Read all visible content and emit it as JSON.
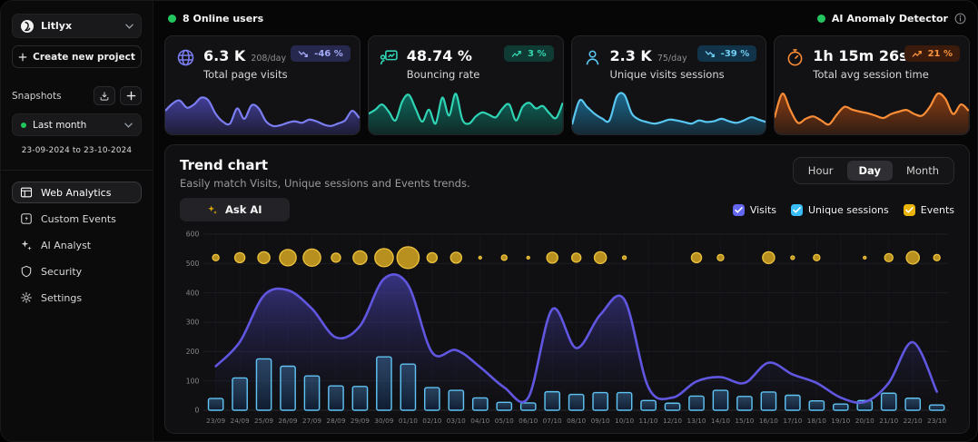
{
  "topbar": {
    "online_users": "8 Online users",
    "anomaly_label": "AI Anomaly Detector"
  },
  "sidebar": {
    "project_name": "Litlyx",
    "create_project": "Create new project",
    "snapshots_label": "Snapshots",
    "snapshot_selected": "Last month",
    "date_range": "23-09-2024 to 23-10-2024",
    "active_nav": "Web Analytics",
    "nav": [
      {
        "label": "Web Analytics"
      },
      {
        "label": "Custom Events"
      },
      {
        "label": "AI Analyst"
      },
      {
        "label": "Security"
      },
      {
        "label": "Settings"
      }
    ]
  },
  "cards": [
    {
      "value": "6.3 K",
      "per_day": "208/day",
      "label": "Total page visits",
      "badge": "-46 %",
      "trend": "down",
      "color": "#7b7ef2",
      "fill": "#45409f",
      "badge_bg": "#26284d",
      "badge_fg": "#a3aaf8",
      "spark": [
        52,
        70,
        78,
        60,
        68,
        85,
        78,
        45,
        25,
        20,
        58,
        32,
        66,
        58,
        26,
        14,
        16,
        22,
        26,
        22,
        30,
        26,
        18,
        14,
        20,
        28,
        52,
        34
      ]
    },
    {
      "value": "48.74 %",
      "per_day": "",
      "label": "Bouncing rate",
      "badge": "3 %",
      "trend": "up",
      "color": "#2fd4b5",
      "fill": "#0d6e61",
      "badge_bg": "#0f3b34",
      "badge_fg": "#34d6b2",
      "spark": [
        45,
        55,
        68,
        50,
        28,
        75,
        92,
        58,
        25,
        55,
        20,
        85,
        40,
        95,
        30,
        20,
        38,
        48,
        42,
        36,
        58,
        68,
        28,
        62,
        72,
        58,
        64,
        46,
        34,
        72
      ]
    },
    {
      "value": "2.3 K",
      "per_day": "75/day",
      "label": "Unique visits sessions",
      "badge": "-39 %",
      "trend": "down",
      "color": "#59c7f2",
      "fill": "#1c6e96",
      "badge_bg": "#12344a",
      "badge_fg": "#72d1f6",
      "spark": [
        18,
        78,
        62,
        45,
        33,
        28,
        88,
        92,
        45,
        30,
        24,
        20,
        24,
        30,
        28,
        24,
        20,
        28,
        24,
        26,
        32,
        26,
        22,
        28,
        36,
        30,
        24
      ]
    },
    {
      "value": "1h 15m 26s",
      "per_day": "",
      "label": "Total avg session time",
      "badge": "21 %",
      "trend": "up",
      "color": "#fb8d37",
      "fill": "#8f3f12",
      "badge_bg": "#3b1c0c",
      "badge_fg": "#fb923c",
      "spark": [
        35,
        95,
        55,
        22,
        32,
        38,
        28,
        18,
        42,
        62,
        55,
        50,
        46,
        40,
        34,
        44,
        50,
        54,
        44,
        40,
        62,
        95,
        82,
        44,
        68,
        52
      ]
    }
  ],
  "trend": {
    "title": "Trend chart",
    "subtitle": "Easily match Visits, Unique sessions and Events trends.",
    "ask_ai": "Ask AI",
    "active_granularity": "Day",
    "granularity": [
      {
        "label": "Hour"
      },
      {
        "label": "Day"
      },
      {
        "label": "Month"
      }
    ],
    "legend": [
      {
        "label": "Visits",
        "color": "#6366f1"
      },
      {
        "label": "Unique sessions",
        "color": "#38bdf8"
      },
      {
        "label": "Events",
        "color": "#eab308"
      }
    ]
  },
  "chart_data": {
    "type": "line",
    "title": "Trend chart",
    "categories": [
      "23/09",
      "24/09",
      "25/09",
      "26/09",
      "27/09",
      "28/09",
      "29/09",
      "30/09",
      "01/10",
      "02/10",
      "03/10",
      "04/10",
      "05/10",
      "06/10",
      "07/10",
      "08/10",
      "09/10",
      "10/10",
      "11/10",
      "12/10",
      "13/10",
      "14/10",
      "15/10",
      "16/10",
      "17/10",
      "18/10",
      "19/10",
      "20/10",
      "21/10",
      "22/10",
      "23/10"
    ],
    "ylim": [
      0,
      600
    ],
    "yticks": [
      0,
      100,
      200,
      300,
      400,
      500,
      600
    ],
    "grid": true,
    "legend_position": "top-right",
    "series": [
      {
        "name": "Visits",
        "kind": "area-line",
        "color": "#6056e0",
        "values": [
          150,
          233,
          391,
          409,
          346,
          248,
          287,
          448,
          427,
          197,
          205,
          147,
          78,
          43,
          344,
          212,
          326,
          377,
          78,
          43,
          98,
          113,
          93,
          162,
          122,
          93,
          43,
          28,
          93,
          232,
          63
        ]
      },
      {
        "name": "Unique sessions",
        "kind": "bar",
        "color": "#5fc3f4",
        "values": [
          40,
          110,
          175,
          150,
          117,
          83,
          81,
          182,
          157,
          77,
          68,
          42,
          27,
          25,
          63,
          54,
          60,
          60,
          33,
          24,
          48,
          68,
          47,
          62,
          51,
          32,
          21,
          33,
          58,
          41,
          18
        ]
      },
      {
        "name": "Events",
        "kind": "bubble",
        "color": "#eab308",
        "baseline": 520,
        "bubble_radius": [
          3.5,
          5.5,
          6.5,
          9,
          9.5,
          5,
          7.5,
          10,
          12,
          5.5,
          6,
          1.5,
          3,
          1.5,
          6,
          5,
          6.5,
          2,
          0,
          0,
          5.5,
          3.5,
          0,
          6.5,
          2,
          3.5,
          0,
          1.5,
          4.5,
          7,
          3.5
        ]
      }
    ]
  }
}
